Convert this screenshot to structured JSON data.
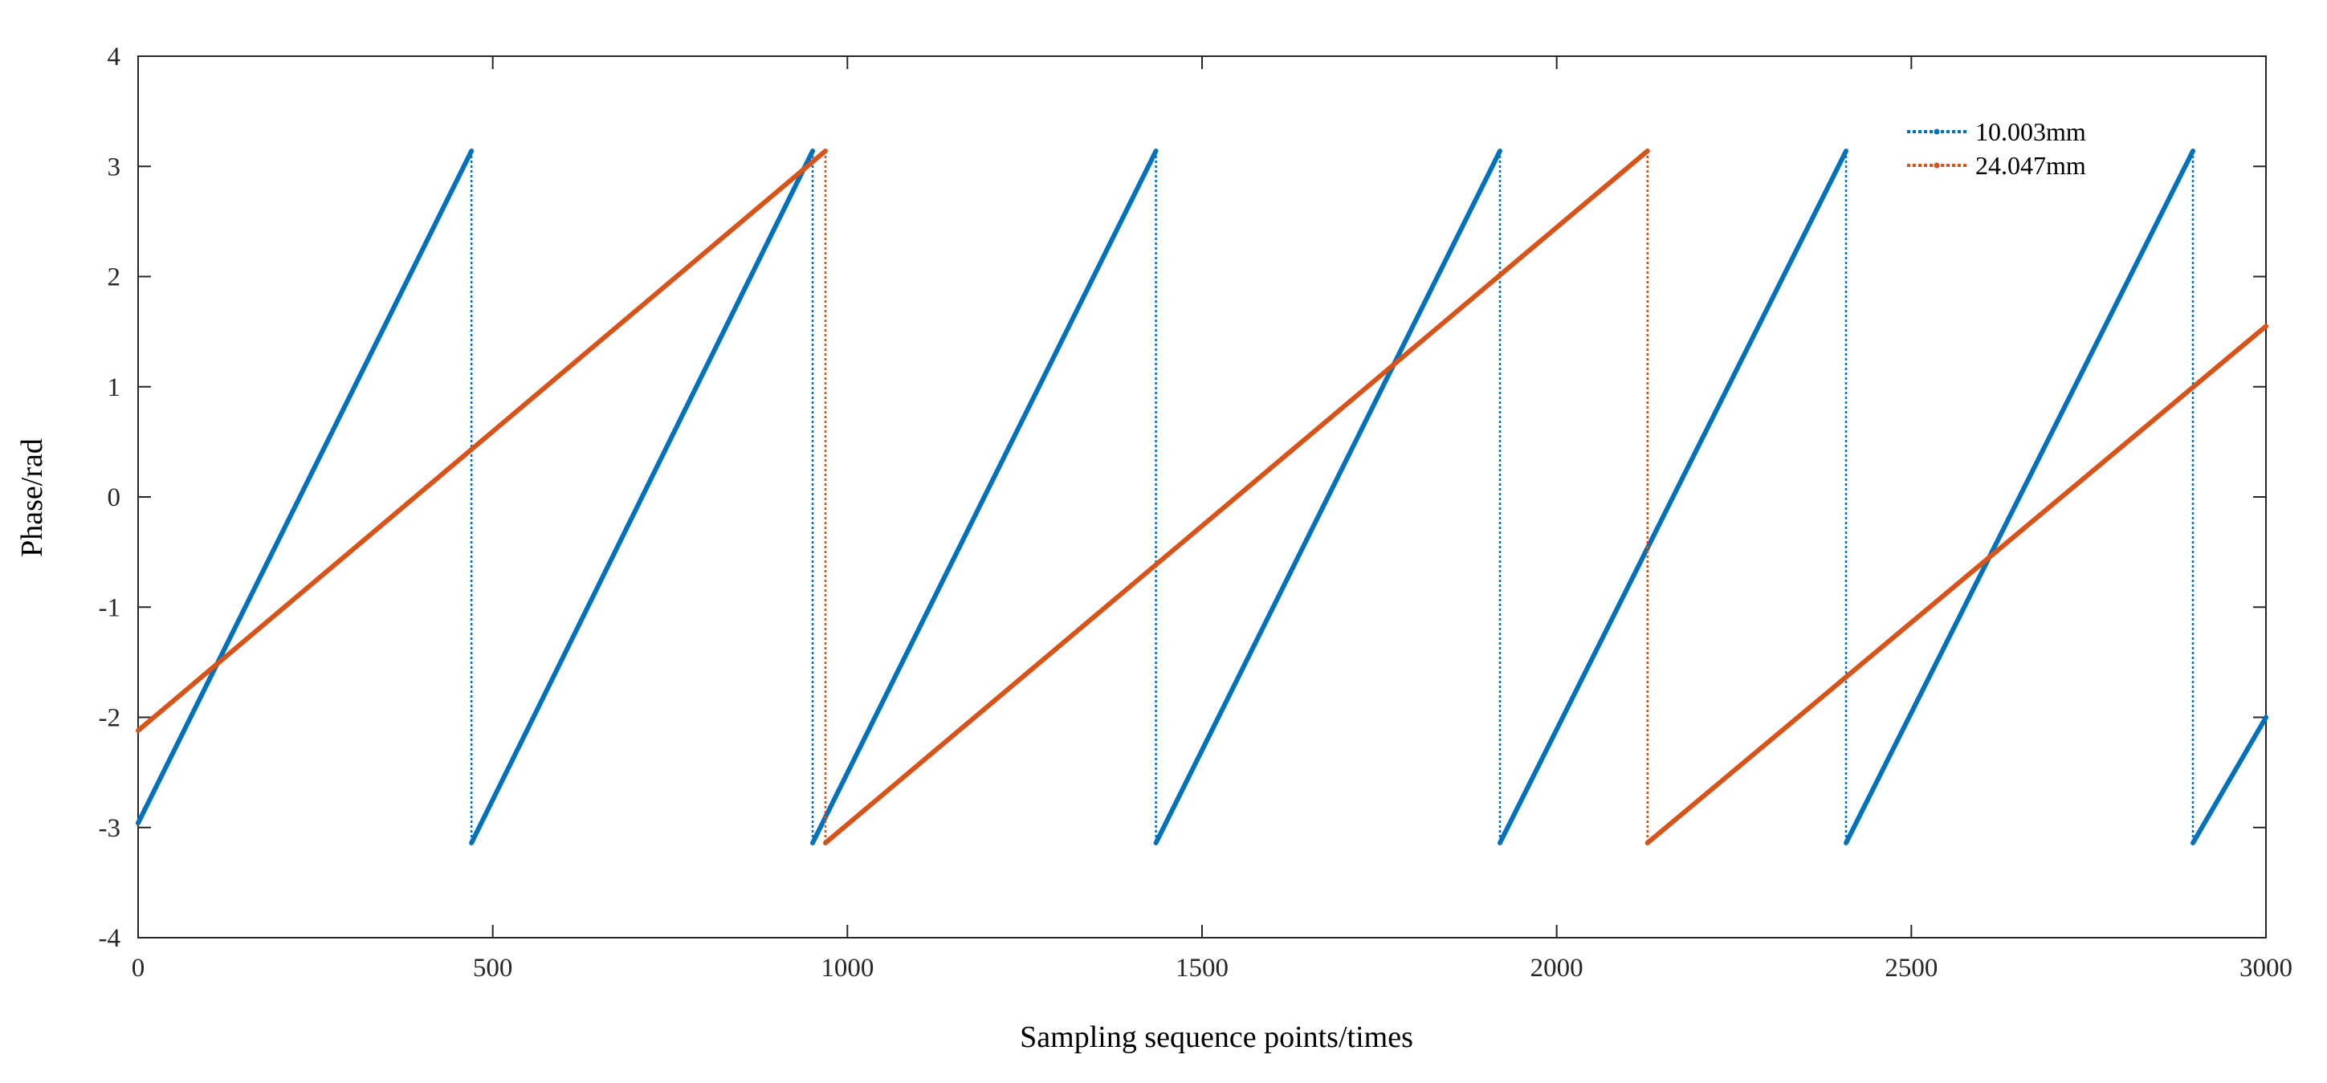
{
  "chart_data": {
    "type": "line",
    "title": "",
    "xlabel": "Sampling sequence points/times",
    "ylabel": "Phase/rad",
    "xlim": [
      0,
      3000
    ],
    "ylim": [
      -4,
      4
    ],
    "xticks": [
      0,
      500,
      1000,
      1500,
      2000,
      2500,
      3000
    ],
    "yticks": [
      4,
      3,
      2,
      1,
      0,
      -1,
      -2,
      -3,
      -4
    ],
    "grid": false,
    "legend_position": "top-right",
    "series": [
      {
        "name": "10.003mm",
        "color": "#0072BD",
        "points": [
          [
            0,
            -2.96
          ],
          [
            470,
            3.14
          ],
          [
            470,
            -3.14
          ],
          [
            951,
            3.14
          ],
          [
            951,
            -3.14
          ],
          [
            1435,
            3.14
          ],
          [
            1435,
            -3.14
          ],
          [
            1920,
            3.14
          ],
          [
            1920,
            -3.14
          ],
          [
            2408,
            3.14
          ],
          [
            2408,
            -3.14
          ],
          [
            2897,
            3.14
          ],
          [
            2897,
            -3.14
          ],
          [
            3000,
            -2.0
          ]
        ]
      },
      {
        "name": "24.047mm",
        "color": "#D95319",
        "points": [
          [
            0,
            -2.12
          ],
          [
            969,
            3.14
          ],
          [
            969,
            -3.14
          ],
          [
            2128,
            3.14
          ],
          [
            2128,
            -3.14
          ],
          [
            3000,
            1.55
          ]
        ]
      }
    ]
  }
}
